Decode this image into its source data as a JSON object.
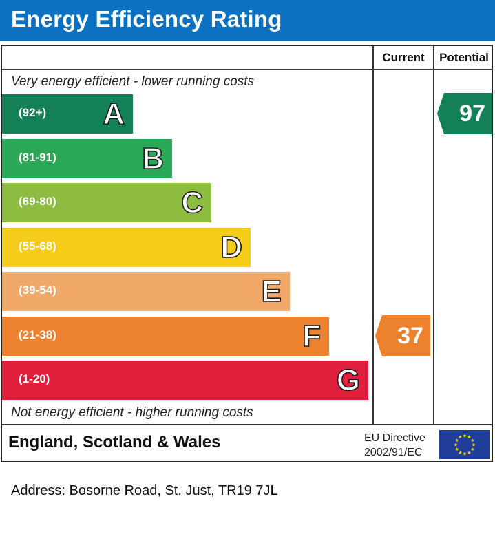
{
  "title": "Energy Efficiency Rating",
  "columns": {
    "current": "Current",
    "potential": "Potential"
  },
  "top_caption": "Very energy efficient - lower running costs",
  "bottom_caption": "Not energy efficient - higher running costs",
  "footer": {
    "region": "England, Scotland & Wales",
    "directive_line1": "EU Directive",
    "directive_line2": "2002/91/EC"
  },
  "address": "Address: Bosorne Road, St. Just, TR19 7JL",
  "chart_data": {
    "type": "bar",
    "categories": [
      "A",
      "B",
      "C",
      "D",
      "E",
      "F",
      "G"
    ],
    "ranges": [
      "(92+)",
      "(81-91)",
      "(69-80)",
      "(55-68)",
      "(39-54)",
      "(21-38)",
      "(1-20)"
    ],
    "colors": [
      "#138057",
      "#2aa757",
      "#8cbd40",
      "#f6cc1a",
      "#f1a96a",
      "#ec822d",
      "#e01f3c"
    ],
    "current": {
      "value": 37,
      "band": "F",
      "color": "#ec822d"
    },
    "potential": {
      "value": 97,
      "band": "A",
      "color": "#138057"
    }
  }
}
